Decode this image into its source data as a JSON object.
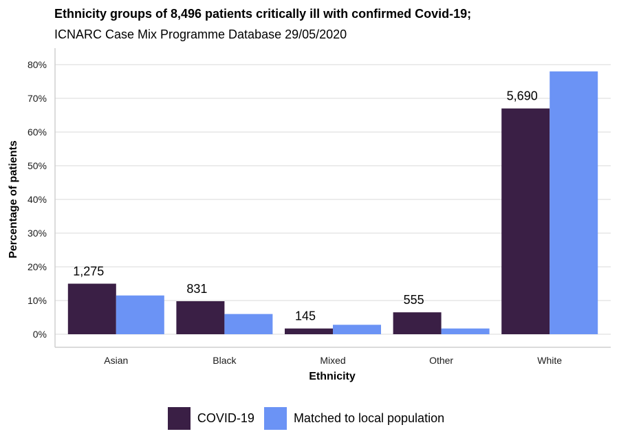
{
  "chart_data": {
    "type": "bar",
    "title": "Ethnicity groups of 8,496 patients critically ill with confirmed Covid-19;",
    "subtitle": "ICNARC Case Mix Programme Database 29/05/2020",
    "xlabel": "Ethnicity",
    "ylabel": "Percentage of patients",
    "categories": [
      "Asian",
      "Black",
      "Mixed",
      "Other",
      "White"
    ],
    "series": [
      {
        "name": "COVID-19",
        "color": "#3a1f45",
        "values": [
          15.0,
          9.8,
          1.7,
          6.5,
          67.0
        ],
        "labels": [
          "1,275",
          "831",
          "145",
          "555",
          "5,690"
        ]
      },
      {
        "name": "Matched to local population",
        "color": "#6b93f5",
        "values": [
          11.5,
          6.0,
          2.8,
          1.7,
          78.0
        ]
      }
    ],
    "ylim": [
      0,
      80
    ],
    "yticks": [
      "0%",
      "10%",
      "20%",
      "30%",
      "40%",
      "50%",
      "60%",
      "70%",
      "80%"
    ],
    "grid": true,
    "legend_position": "bottom"
  }
}
